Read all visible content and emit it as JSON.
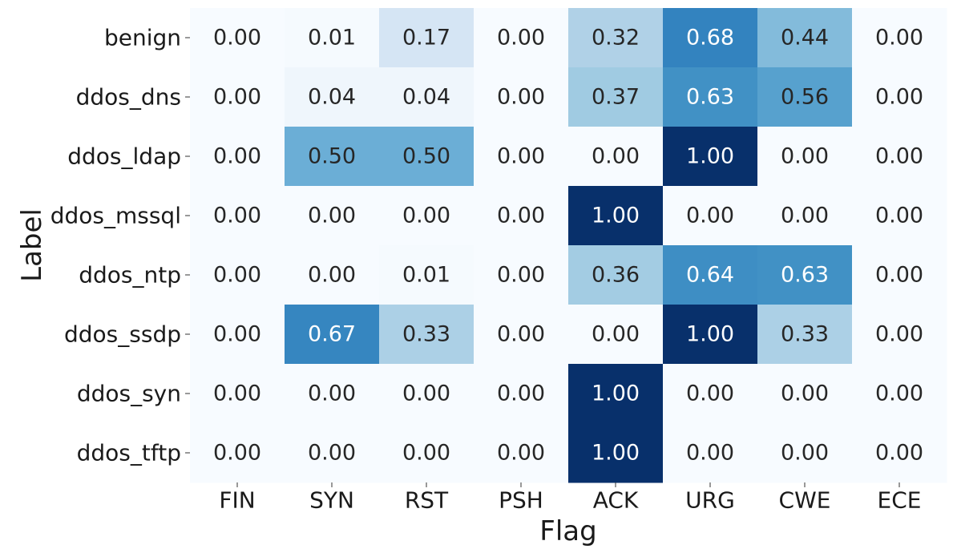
{
  "chart_data": {
    "type": "heatmap",
    "xlabel": "Flag",
    "ylabel": "Label",
    "x_categories": [
      "FIN",
      "SYN",
      "RST",
      "PSH",
      "ACK",
      "URG",
      "CWE",
      "ECE"
    ],
    "y_categories": [
      "benign",
      "ddos_dns",
      "ddos_ldap",
      "ddos_mssql",
      "ddos_ntp",
      "ddos_ssdp",
      "ddos_syn",
      "ddos_tftp"
    ],
    "values": [
      [
        0.0,
        0.01,
        0.17,
        0.0,
        0.32,
        0.68,
        0.44,
        0.0
      ],
      [
        0.0,
        0.04,
        0.04,
        0.0,
        0.37,
        0.63,
        0.56,
        0.0
      ],
      [
        0.0,
        0.5,
        0.5,
        0.0,
        0.0,
        1.0,
        0.0,
        0.0
      ],
      [
        0.0,
        0.0,
        0.0,
        0.0,
        1.0,
        0.0,
        0.0,
        0.0
      ],
      [
        0.0,
        0.0,
        0.01,
        0.0,
        0.36,
        0.64,
        0.63,
        0.0
      ],
      [
        0.0,
        0.67,
        0.33,
        0.0,
        0.0,
        1.0,
        0.33,
        0.0
      ],
      [
        0.0,
        0.0,
        0.0,
        0.0,
        1.0,
        0.0,
        0.0,
        0.0
      ],
      [
        0.0,
        0.0,
        0.0,
        0.0,
        1.0,
        0.0,
        0.0,
        0.0
      ]
    ],
    "value_format": "0.00",
    "colormap": "Blues",
    "vmin": 0,
    "vmax": 1,
    "colorbar": false,
    "grid": false,
    "annotations": true
  }
}
